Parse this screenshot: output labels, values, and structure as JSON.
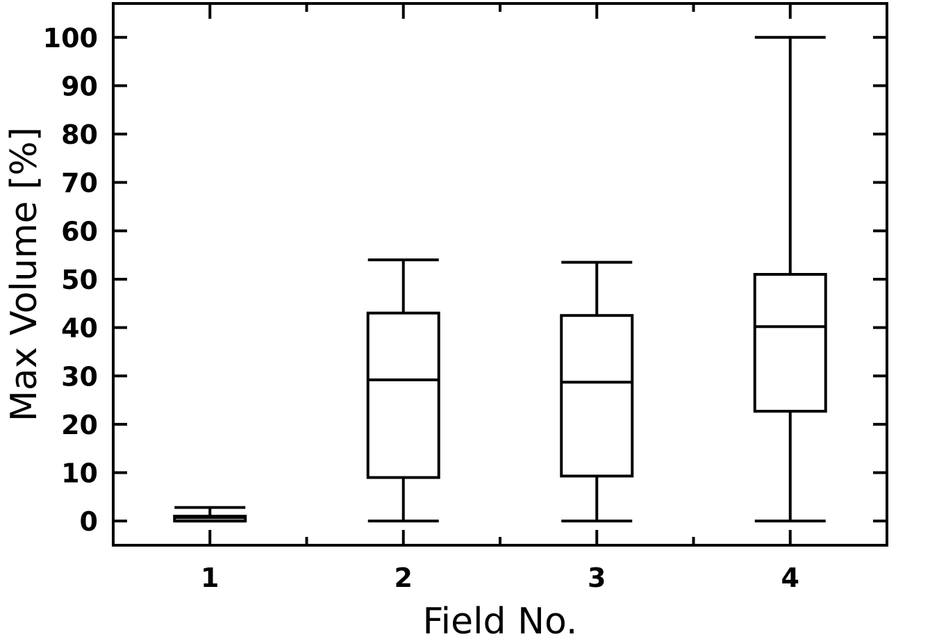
{
  "chart_data": {
    "type": "box",
    "title": "",
    "xlabel": "Field No.",
    "ylabel": "Max Volume [%]",
    "xlim": [
      0.5,
      4.5
    ],
    "ylim": [
      -5,
      107
    ],
    "yticks": [
      0,
      10,
      20,
      30,
      40,
      50,
      60,
      70,
      80,
      90,
      100
    ],
    "ytick_labels": [
      "0",
      "10",
      "20",
      "30",
      "40",
      "50",
      "60",
      "70",
      "80",
      "90",
      "100"
    ],
    "categories": [
      "1",
      "2",
      "3",
      "4"
    ],
    "boxes": [
      {
        "category": "1",
        "whisker_low": 0,
        "q1": 0,
        "median": 0.7,
        "q3": 1,
        "whisker_high": 2.8
      },
      {
        "category": "2",
        "whisker_low": 0,
        "q1": 9,
        "median": 29.2,
        "q3": 43,
        "whisker_high": 54
      },
      {
        "category": "3",
        "whisker_low": 0,
        "q1": 9.3,
        "median": 28.7,
        "q3": 42.5,
        "whisker_high": 53.5
      },
      {
        "category": "4",
        "whisker_low": 0,
        "q1": 22.7,
        "median": 40.2,
        "q3": 51,
        "whisker_high": 100
      }
    ],
    "grid": false,
    "legend": "none",
    "stroke_color": "#000000"
  }
}
